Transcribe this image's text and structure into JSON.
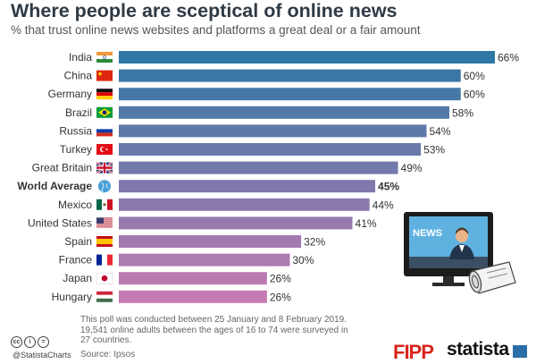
{
  "header": {
    "title": "Where people are sceptical of online news",
    "subtitle": "% that trust online news websites and platforms a great deal or a fair amount"
  },
  "chart_data": {
    "type": "bar",
    "orientation": "horizontal",
    "title": "Where people are sceptical of online news",
    "subtitle": "% that trust online news websites and platforms a great deal or a fair amount",
    "categories": [
      "India",
      "China",
      "Germany",
      "Brazil",
      "Russia",
      "Turkey",
      "Great Britain",
      "World Average",
      "Mexico",
      "United States",
      "Spain",
      "France",
      "Japan",
      "Hungary"
    ],
    "values": [
      66,
      60,
      60,
      58,
      54,
      53,
      49,
      45,
      44,
      41,
      32,
      30,
      26,
      26
    ],
    "value_labels": [
      "66%",
      "60%",
      "60%",
      "58%",
      "54%",
      "53%",
      "49%",
      "45%",
      "44%",
      "41%",
      "32%",
      "30%",
      "26%",
      "26%"
    ],
    "highlighted": "World Average",
    "flag_icons": [
      "india-flag-icon",
      "china-flag-icon",
      "germany-flag-icon",
      "brazil-flag-icon",
      "russia-flag-icon",
      "turkey-flag-icon",
      "uk-flag-icon",
      "globe-icon",
      "mexico-flag-icon",
      "usa-flag-icon",
      "spain-flag-icon",
      "france-flag-icon",
      "japan-flag-icon",
      "hungary-flag-icon"
    ],
    "xlim": [
      0,
      66
    ],
    "xlabel": "",
    "ylabel": "",
    "grid": false,
    "legend": "none",
    "colors": {
      "top": "#2f77a4",
      "bottom": "#c47bb3"
    }
  },
  "illustration": {
    "label": "NEWS"
  },
  "footer": {
    "note": "This poll was conducted between 25 January and 8 February 2019. 19,541 online adults between the ages of 16 to 74 were surveyed in 27 countries.",
    "source": "Source: Ipsos",
    "handle": "@StatistaCharts",
    "brand_fipp": "FIPP",
    "brand_statista": "statista"
  }
}
